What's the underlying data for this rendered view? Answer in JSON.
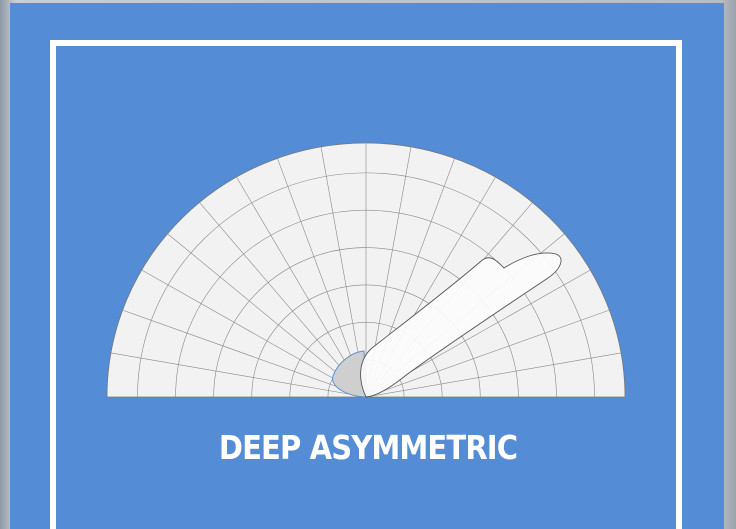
{
  "card": {
    "label": "DEEP ASYMMETRIC"
  }
}
